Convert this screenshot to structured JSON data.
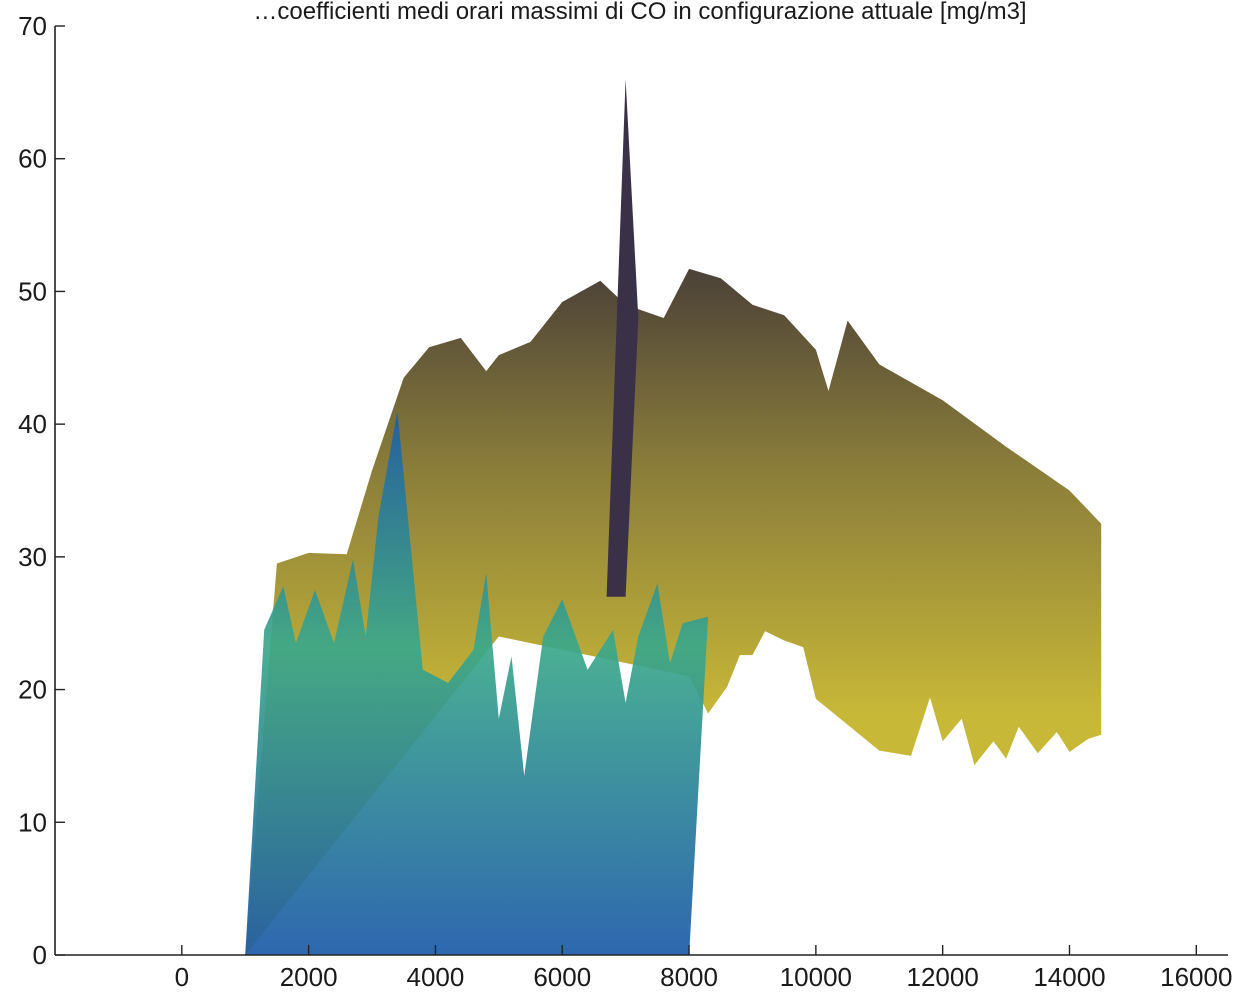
{
  "chart_data": {
    "type": "area",
    "title": "…coefficienti medi orari massimi di CO in configurazione attuale [mg/m3]",
    "xlim": [
      -2000,
      16500
    ],
    "ylim": [
      0,
      70
    ],
    "x_ticks": [
      0,
      2000,
      4000,
      6000,
      8000,
      10000,
      12000,
      14000,
      16000
    ],
    "y_ticks": [
      0,
      10,
      20,
      30,
      40,
      50,
      60,
      70
    ],
    "grid": false,
    "colors": {
      "front_top": "#4a4038",
      "front_mid": "#8a7d3a",
      "front_bottom": "#c8b838",
      "back_top": "#3aa88a",
      "back_bottom": "#1c5aa8",
      "spike": "#3a3048"
    },
    "surfaces": [
      {
        "name": "",
        "upper": [
          {
            "x": 1500,
            "y": 29.5
          },
          {
            "x": 2000,
            "y": 30.3
          },
          {
            "x": 2600,
            "y": 30.2
          },
          {
            "x": 3000,
            "y": 36.5
          },
          {
            "x": 3500,
            "y": 43.5
          },
          {
            "x": 3900,
            "y": 45.8
          },
          {
            "x": 4400,
            "y": 46.5
          },
          {
            "x": 4800,
            "y": 44.0
          },
          {
            "x": 5000,
            "y": 45.2
          },
          {
            "x": 5500,
            "y": 46.2
          },
          {
            "x": 6000,
            "y": 49.2
          },
          {
            "x": 6600,
            "y": 50.8
          },
          {
            "x": 7000,
            "y": 49.0
          },
          {
            "x": 7600,
            "y": 48.0
          },
          {
            "x": 8000,
            "y": 51.7
          },
          {
            "x": 8500,
            "y": 51.0
          },
          {
            "x": 9000,
            "y": 49.0
          },
          {
            "x": 9500,
            "y": 48.2
          },
          {
            "x": 10000,
            "y": 45.6
          },
          {
            "x": 10200,
            "y": 42.5
          },
          {
            "x": 10500,
            "y": 47.8
          },
          {
            "x": 11000,
            "y": 44.5
          },
          {
            "x": 12000,
            "y": 41.8
          },
          {
            "x": 13000,
            "y": 38.3
          },
          {
            "x": 14000,
            "y": 35.0
          },
          {
            "x": 14500,
            "y": 32.5
          }
        ],
        "lower": [
          {
            "x": 14500,
            "y": 16.6
          },
          {
            "x": 14300,
            "y": 16.3
          },
          {
            "x": 14000,
            "y": 15.3
          },
          {
            "x": 13800,
            "y": 16.8
          },
          {
            "x": 13500,
            "y": 15.2
          },
          {
            "x": 13200,
            "y": 17.2
          },
          {
            "x": 13000,
            "y": 14.8
          },
          {
            "x": 12800,
            "y": 16.1
          },
          {
            "x": 12500,
            "y": 14.3
          },
          {
            "x": 12300,
            "y": 17.8
          },
          {
            "x": 12000,
            "y": 16.1
          },
          {
            "x": 11800,
            "y": 19.4
          },
          {
            "x": 11500,
            "y": 15.0
          },
          {
            "x": 11000,
            "y": 15.4
          },
          {
            "x": 10000,
            "y": 19.3
          },
          {
            "x": 9800,
            "y": 23.2
          },
          {
            "x": 9500,
            "y": 23.7
          },
          {
            "x": 9200,
            "y": 24.4
          },
          {
            "x": 9000,
            "y": 22.6
          },
          {
            "x": 8800,
            "y": 22.6
          },
          {
            "x": 8600,
            "y": 20.2
          },
          {
            "x": 8300,
            "y": 18.2
          },
          {
            "x": 8000,
            "y": 21.0
          },
          {
            "x": 7000,
            "y": 22.0
          },
          {
            "x": 5000,
            "y": 24.0
          },
          {
            "x": 1000,
            "y": 0
          }
        ]
      },
      {
        "name": "",
        "upper": [
          {
            "x": 1300,
            "y": 24.5
          },
          {
            "x": 1600,
            "y": 27.8
          },
          {
            "x": 1800,
            "y": 23.5
          },
          {
            "x": 2100,
            "y": 27.5
          },
          {
            "x": 2400,
            "y": 23.5
          },
          {
            "x": 2700,
            "y": 29.8
          },
          {
            "x": 2900,
            "y": 24.0
          },
          {
            "x": 3100,
            "y": 33.0
          },
          {
            "x": 3400,
            "y": 41.0
          },
          {
            "x": 3800,
            "y": 21.5
          },
          {
            "x": 4200,
            "y": 20.5
          },
          {
            "x": 4600,
            "y": 23.0
          },
          {
            "x": 4800,
            "y": 28.8
          },
          {
            "x": 5000,
            "y": 17.8
          },
          {
            "x": 5200,
            "y": 22.5
          },
          {
            "x": 5400,
            "y": 13.5
          },
          {
            "x": 5700,
            "y": 24.0
          },
          {
            "x": 6000,
            "y": 26.8
          },
          {
            "x": 6400,
            "y": 21.5
          },
          {
            "x": 6800,
            "y": 24.5
          },
          {
            "x": 7000,
            "y": 19.0
          },
          {
            "x": 7200,
            "y": 24.0
          },
          {
            "x": 7500,
            "y": 28.0
          },
          {
            "x": 7700,
            "y": 22.0
          },
          {
            "x": 7900,
            "y": 25.0
          },
          {
            "x": 8300,
            "y": 25.5
          }
        ],
        "lower": [
          {
            "x": 8300,
            "y": 25.5
          },
          {
            "x": 8000,
            "y": 0
          },
          {
            "x": 1000,
            "y": 0
          }
        ]
      }
    ],
    "spike": [
      {
        "x": 6700,
        "y": 27.0
      },
      {
        "x": 7000,
        "y": 66.0
      },
      {
        "x": 7200,
        "y": 48.0
      },
      {
        "x": 7000,
        "y": 27.0
      }
    ]
  }
}
